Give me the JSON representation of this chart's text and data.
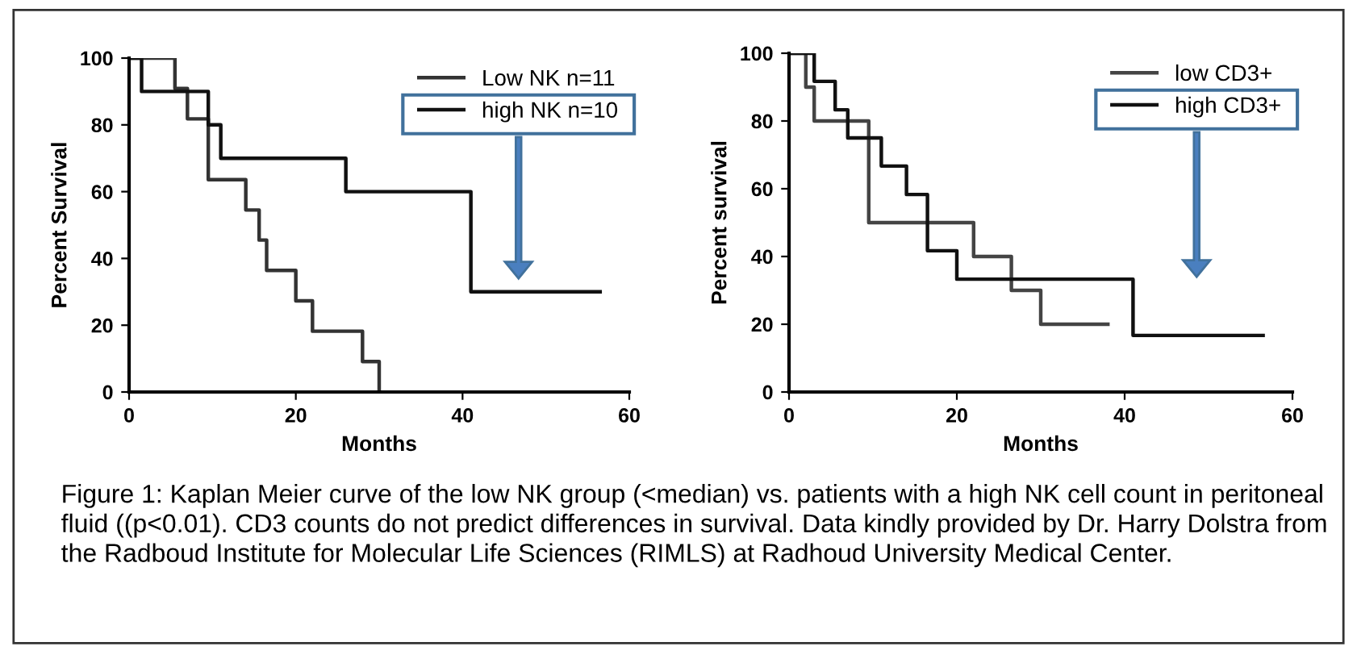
{
  "chart_data": [
    {
      "type": "step",
      "xlabel": "Months",
      "ylabel": "Percent Survival",
      "xlim": [
        0,
        60
      ],
      "ylim": [
        0,
        100
      ],
      "xticks": [
        0,
        20,
        40,
        60
      ],
      "yticks": [
        0,
        20,
        40,
        60,
        80,
        100
      ],
      "grid": false,
      "legend": "top right",
      "marker": "none",
      "line_style": "solid",
      "series": [
        {
          "name": "Low NK n=11",
          "color": "#333333",
          "x": [
            0,
            5.5,
            7,
            9.5,
            14,
            15.6,
            16.5,
            20,
            22,
            28,
            30
          ],
          "values": [
            100,
            90.9,
            81.8,
            63.6,
            54.5,
            45.5,
            36.4,
            27.3,
            18.2,
            9.1,
            0
          ]
        },
        {
          "name": "high NK n=10",
          "color": "#111111",
          "x": [
            0,
            1.5,
            9.5,
            11,
            26,
            41,
            56.5
          ],
          "values": [
            100,
            90,
            80,
            70,
            60,
            30,
            30
          ]
        }
      ],
      "annotations": [
        "Figure 1: Kaplan Meier curve of the low NK group (<median) vs. patients with a high NK cell count in peritoneal fluid ((p<0.01). CD3 counts do not predict differences in survival. Data kindly provided by Dr. Harry Dolstra from the Radboud Institute for Molecular Life Sciences (RIMLS) at Radhoud University Medical Center."
      ]
    },
    {
      "type": "step",
      "xlabel": "Months",
      "ylabel": "Percent survival",
      "xlim": [
        0,
        60
      ],
      "ylim": [
        0,
        100
      ],
      "xticks": [
        0,
        20,
        40,
        60
      ],
      "yticks": [
        0,
        20,
        40,
        60,
        80,
        100
      ],
      "grid": false,
      "legend": "top right",
      "marker": "none",
      "line_style": "solid",
      "series": [
        {
          "name": "low CD3+",
          "color": "#444444",
          "x": [
            0,
            2,
            3,
            9.5,
            22,
            26.5,
            30,
            38
          ],
          "values": [
            100,
            90,
            80,
            50,
            40,
            30,
            20,
            20
          ]
        },
        {
          "name": "high CD3+",
          "color": "#111111",
          "x": [
            0,
            3,
            5.5,
            7,
            11,
            14,
            16.5,
            20,
            41,
            56.5
          ],
          "values": [
            100,
            91.7,
            83.3,
            75,
            66.7,
            58.3,
            41.7,
            33.3,
            16.7,
            16.7
          ]
        }
      ]
    }
  ]
}
